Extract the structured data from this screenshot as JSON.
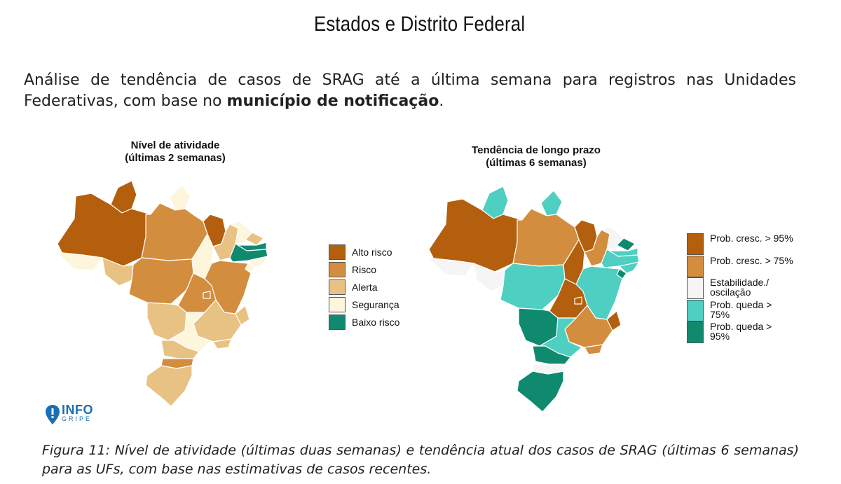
{
  "page": {
    "heading": "Estados e Distrito Federal",
    "intro_part1": "Análise de tendência de casos de SRAG até a última semana para registros nas Unidades Federativas, com base no ",
    "intro_bold": "município de notificação",
    "intro_part2": ".",
    "caption": "Figura 11: Nível de atividade (últimas duas semanas) e tendência atual dos casos de SRAG (últimas 6 semanas) para as UFs, com base nas estimativas de casos recentes."
  },
  "logo": {
    "line1": "INFO",
    "line2": "GRIPE",
    "color": "#1a6fb3"
  },
  "map_activity": {
    "title_line1": "Nível de atividade",
    "title_line2": "(últimas 2 semanas)",
    "legend": [
      {
        "label": "Alto risco",
        "color": "#b35f0d"
      },
      {
        "label": "Risco",
        "color": "#d38d3e"
      },
      {
        "label": "Alerta",
        "color": "#e8c283"
      },
      {
        "label": "Segurança",
        "color": "#fdf5dc"
      },
      {
        "label": "Baixo risco",
        "color": "#108a6f"
      }
    ],
    "states": {
      "AC": "Segurança",
      "AM": "Alto risco",
      "RR": "Alto risco",
      "AP": "Segurança",
      "PA": "Risco",
      "RO": "Alerta",
      "MT": "Risco",
      "TO": "Segurança",
      "MA": "Alto risco",
      "PI": "Alerta",
      "CE": "Segurança",
      "RN": "Alerta",
      "PB": "Baixo risco",
      "PE": "Baixo risco",
      "AL": "Segurança",
      "SE": "Segurança",
      "BA": "Risco",
      "GO": "Risco",
      "DF": "Risco",
      "MG": "Alerta",
      "ES": "Alerta",
      "MS": "Alerta",
      "SP": "Segurança",
      "RJ": "Alerta",
      "PR": "Alerta",
      "SC": "Risco",
      "RS": "Alerta"
    }
  },
  "map_trend": {
    "title_line1": "Tendência de longo prazo",
    "title_line2": "(últimas 6 semanas)",
    "legend": [
      {
        "label": "Prob. cresc. > 95%",
        "color": "#b35f0d"
      },
      {
        "label": "Prob. cresc. > 75%",
        "color": "#d38d3e"
      },
      {
        "label": "Estabilidade./ oscilação",
        "color": "#f5f5f5"
      },
      {
        "label": "Prob. queda > 75%",
        "color": "#4ecfc2"
      },
      {
        "label": "Prob. queda > 95%",
        "color": "#108a6f"
      }
    ],
    "states": {
      "AC": "Estabilidade./ oscilação",
      "AM": "Prob. cresc. > 95%",
      "RR": "Prob. queda > 75%",
      "AP": "Prob. queda > 75%",
      "PA": "Prob. cresc. > 75%",
      "RO": "Estabilidade./ oscilação",
      "MT": "Prob. queda > 75%",
      "TO": "Prob. cresc. > 95%",
      "MA": "Prob. cresc. > 95%",
      "PI": "Prob. cresc. > 75%",
      "CE": "Estabilidade./ oscilação",
      "RN": "Prob. queda > 95%",
      "PB": "Prob. queda > 75%",
      "PE": "Prob. queda > 75%",
      "AL": "Prob. queda > 75%",
      "SE": "Prob. queda > 95%",
      "BA": "Prob. queda > 75%",
      "GO": "Prob. cresc. > 95%",
      "DF": "Prob. cresc. > 95%",
      "MG": "Prob. cresc. > 75%",
      "ES": "Prob. cresc. > 95%",
      "MS": "Prob. queda > 95%",
      "SP": "Prob. queda > 75%",
      "RJ": "Prob. cresc. > 75%",
      "PR": "Prob. queda > 95%",
      "SC": "Estabilidade./ oscilação",
      "RS": "Prob. queda > 95%"
    }
  }
}
